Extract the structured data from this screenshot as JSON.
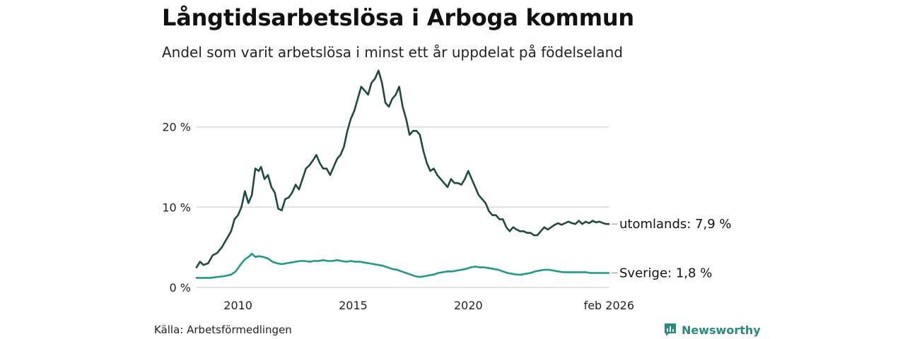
{
  "chart_data": {
    "type": "line",
    "title": "Långtidsarbetslösa i Arboga kommun",
    "subtitle": "Andel som varit arbetslösa i minst ett år uppdelat på födelseland",
    "xlabel": "",
    "ylabel": "",
    "xlim": [
      2008.2,
      2026.1
    ],
    "ylim": [
      0,
      27
    ],
    "x_ticks": [
      {
        "value": 2010,
        "label": "2010"
      },
      {
        "value": 2015,
        "label": "2015"
      },
      {
        "value": 2020,
        "label": "2020"
      },
      {
        "value": 2026.1,
        "label": "feb 2026"
      }
    ],
    "y_ticks": [
      {
        "value": 0,
        "label": "0 %"
      },
      {
        "value": 10,
        "label": "10 %"
      },
      {
        "value": 20,
        "label": "20 %"
      }
    ],
    "series": [
      {
        "name": "utomlands",
        "end_label": "utomlands: 7,9 %",
        "color": "#1f4a40",
        "points": [
          [
            2008.2,
            2.5
          ],
          [
            2008.35,
            3.2
          ],
          [
            2008.5,
            2.8
          ],
          [
            2008.7,
            3.0
          ],
          [
            2008.9,
            4.0
          ],
          [
            2009.1,
            4.3
          ],
          [
            2009.3,
            5.0
          ],
          [
            2009.5,
            6.0
          ],
          [
            2009.7,
            7.0
          ],
          [
            2009.85,
            8.5
          ],
          [
            2010.0,
            9.0
          ],
          [
            2010.15,
            10.0
          ],
          [
            2010.3,
            12.0
          ],
          [
            2010.45,
            10.5
          ],
          [
            2010.6,
            11.5
          ],
          [
            2010.75,
            14.8
          ],
          [
            2010.9,
            14.5
          ],
          [
            2011.0,
            15.0
          ],
          [
            2011.15,
            13.5
          ],
          [
            2011.3,
            14.0
          ],
          [
            2011.45,
            12.5
          ],
          [
            2011.6,
            11.8
          ],
          [
            2011.75,
            9.8
          ],
          [
            2011.9,
            9.6
          ],
          [
            2012.05,
            11.0
          ],
          [
            2012.2,
            11.2
          ],
          [
            2012.35,
            11.8
          ],
          [
            2012.5,
            12.8
          ],
          [
            2012.65,
            12.2
          ],
          [
            2012.8,
            13.5
          ],
          [
            2012.95,
            14.8
          ],
          [
            2013.1,
            15.2
          ],
          [
            2013.25,
            15.8
          ],
          [
            2013.4,
            16.5
          ],
          [
            2013.55,
            15.5
          ],
          [
            2013.7,
            14.8
          ],
          [
            2013.85,
            14.8
          ],
          [
            2014.0,
            14.0
          ],
          [
            2014.15,
            15.0
          ],
          [
            2014.3,
            16.0
          ],
          [
            2014.45,
            16.5
          ],
          [
            2014.6,
            17.5
          ],
          [
            2014.75,
            19.5
          ],
          [
            2014.9,
            21.0
          ],
          [
            2015.05,
            22.0
          ],
          [
            2015.2,
            23.5
          ],
          [
            2015.35,
            25.0
          ],
          [
            2015.5,
            24.5
          ],
          [
            2015.65,
            24.0
          ],
          [
            2015.8,
            25.5
          ],
          [
            2015.95,
            26.0
          ],
          [
            2016.1,
            27.0
          ],
          [
            2016.25,
            25.5
          ],
          [
            2016.4,
            23.0
          ],
          [
            2016.55,
            22.5
          ],
          [
            2016.7,
            23.5
          ],
          [
            2016.85,
            24.0
          ],
          [
            2017.0,
            25.0
          ],
          [
            2017.15,
            22.5
          ],
          [
            2017.3,
            21.0
          ],
          [
            2017.45,
            19.0
          ],
          [
            2017.6,
            19.5
          ],
          [
            2017.75,
            19.5
          ],
          [
            2017.9,
            19.0
          ],
          [
            2018.05,
            17.0
          ],
          [
            2018.2,
            15.5
          ],
          [
            2018.35,
            14.5
          ],
          [
            2018.5,
            14.8
          ],
          [
            2018.65,
            14.0
          ],
          [
            2018.8,
            13.5
          ],
          [
            2018.95,
            13.0
          ],
          [
            2019.1,
            12.5
          ],
          [
            2019.25,
            13.5
          ],
          [
            2019.4,
            13.0
          ],
          [
            2019.55,
            13.0
          ],
          [
            2019.7,
            12.8
          ],
          [
            2019.85,
            13.5
          ],
          [
            2020.0,
            14.5
          ],
          [
            2020.15,
            13.5
          ],
          [
            2020.3,
            12.5
          ],
          [
            2020.45,
            11.5
          ],
          [
            2020.6,
            11.0
          ],
          [
            2020.75,
            10.5
          ],
          [
            2020.9,
            9.5
          ],
          [
            2021.05,
            9.0
          ],
          [
            2021.2,
            9.0
          ],
          [
            2021.35,
            8.5
          ],
          [
            2021.5,
            8.5
          ],
          [
            2021.65,
            7.5
          ],
          [
            2021.8,
            7.0
          ],
          [
            2021.95,
            7.5
          ],
          [
            2022.1,
            7.2
          ],
          [
            2022.25,
            7.0
          ],
          [
            2022.4,
            7.0
          ],
          [
            2022.55,
            6.8
          ],
          [
            2022.7,
            6.8
          ],
          [
            2022.85,
            6.5
          ],
          [
            2023.0,
            6.5
          ],
          [
            2023.15,
            7.0
          ],
          [
            2023.3,
            7.5
          ],
          [
            2023.45,
            7.2
          ],
          [
            2023.6,
            7.5
          ],
          [
            2023.75,
            7.8
          ],
          [
            2023.9,
            8.0
          ],
          [
            2024.05,
            7.8
          ],
          [
            2024.2,
            8.0
          ],
          [
            2024.35,
            8.2
          ],
          [
            2024.5,
            8.0
          ],
          [
            2024.65,
            7.9
          ],
          [
            2024.8,
            8.3
          ],
          [
            2024.95,
            7.9
          ],
          [
            2025.1,
            8.2
          ],
          [
            2025.25,
            8.0
          ],
          [
            2025.4,
            8.3
          ],
          [
            2025.55,
            8.1
          ],
          [
            2025.7,
            8.2
          ],
          [
            2025.85,
            8.0
          ],
          [
            2026.0,
            7.9
          ],
          [
            2026.1,
            7.9
          ]
        ]
      },
      {
        "name": "Sverige",
        "end_label": "Sverige: 1,8 %",
        "color": "#1f9a89",
        "points": [
          [
            2008.2,
            1.2
          ],
          [
            2008.5,
            1.2
          ],
          [
            2008.8,
            1.2
          ],
          [
            2009.1,
            1.3
          ],
          [
            2009.4,
            1.4
          ],
          [
            2009.7,
            1.6
          ],
          [
            2009.9,
            2.0
          ],
          [
            2010.1,
            2.8
          ],
          [
            2010.3,
            3.5
          ],
          [
            2010.5,
            3.9
          ],
          [
            2010.6,
            4.2
          ],
          [
            2010.75,
            3.8
          ],
          [
            2010.9,
            3.9
          ],
          [
            2011.1,
            3.8
          ],
          [
            2011.3,
            3.6
          ],
          [
            2011.5,
            3.2
          ],
          [
            2011.7,
            3.0
          ],
          [
            2011.9,
            2.9
          ],
          [
            2012.1,
            3.0
          ],
          [
            2012.3,
            3.1
          ],
          [
            2012.5,
            3.2
          ],
          [
            2012.7,
            3.3
          ],
          [
            2012.9,
            3.3
          ],
          [
            2013.1,
            3.2
          ],
          [
            2013.3,
            3.3
          ],
          [
            2013.5,
            3.3
          ],
          [
            2013.7,
            3.4
          ],
          [
            2013.9,
            3.3
          ],
          [
            2014.1,
            3.3
          ],
          [
            2014.3,
            3.4
          ],
          [
            2014.5,
            3.3
          ],
          [
            2014.7,
            3.2
          ],
          [
            2014.9,
            3.3
          ],
          [
            2015.1,
            3.2
          ],
          [
            2015.3,
            3.2
          ],
          [
            2015.5,
            3.1
          ],
          [
            2015.7,
            3.0
          ],
          [
            2015.9,
            2.9
          ],
          [
            2016.1,
            2.8
          ],
          [
            2016.3,
            2.7
          ],
          [
            2016.5,
            2.5
          ],
          [
            2016.7,
            2.3
          ],
          [
            2016.9,
            2.2
          ],
          [
            2017.1,
            2.0
          ],
          [
            2017.3,
            1.8
          ],
          [
            2017.5,
            1.6
          ],
          [
            2017.7,
            1.4
          ],
          [
            2017.9,
            1.3
          ],
          [
            2018.1,
            1.4
          ],
          [
            2018.3,
            1.5
          ],
          [
            2018.5,
            1.6
          ],
          [
            2018.7,
            1.8
          ],
          [
            2018.9,
            1.9
          ],
          [
            2019.1,
            2.0
          ],
          [
            2019.3,
            2.0
          ],
          [
            2019.5,
            2.1
          ],
          [
            2019.7,
            2.2
          ],
          [
            2019.9,
            2.3
          ],
          [
            2020.1,
            2.5
          ],
          [
            2020.3,
            2.6
          ],
          [
            2020.5,
            2.5
          ],
          [
            2020.7,
            2.5
          ],
          [
            2020.9,
            2.4
          ],
          [
            2021.1,
            2.3
          ],
          [
            2021.3,
            2.2
          ],
          [
            2021.5,
            2.0
          ],
          [
            2021.7,
            1.8
          ],
          [
            2021.9,
            1.7
          ],
          [
            2022.1,
            1.6
          ],
          [
            2022.3,
            1.6
          ],
          [
            2022.5,
            1.7
          ],
          [
            2022.7,
            1.8
          ],
          [
            2022.9,
            2.0
          ],
          [
            2023.1,
            2.1
          ],
          [
            2023.3,
            2.2
          ],
          [
            2023.5,
            2.2
          ],
          [
            2023.7,
            2.1
          ],
          [
            2023.9,
            2.0
          ],
          [
            2024.1,
            1.9
          ],
          [
            2024.3,
            1.9
          ],
          [
            2024.5,
            1.9
          ],
          [
            2024.7,
            1.9
          ],
          [
            2024.9,
            1.9
          ],
          [
            2025.1,
            1.9
          ],
          [
            2025.3,
            1.8
          ],
          [
            2025.5,
            1.8
          ],
          [
            2025.7,
            1.8
          ],
          [
            2025.9,
            1.8
          ],
          [
            2026.1,
            1.8
          ]
        ]
      }
    ],
    "source": "Källa: Arbetsförmedlingen",
    "brand": "Newsworthy"
  },
  "colors": {
    "brand": "#2a8a7b",
    "grid": "#d9d9d9"
  },
  "icons": {
    "brand": "bar-chart-bubble-icon"
  }
}
